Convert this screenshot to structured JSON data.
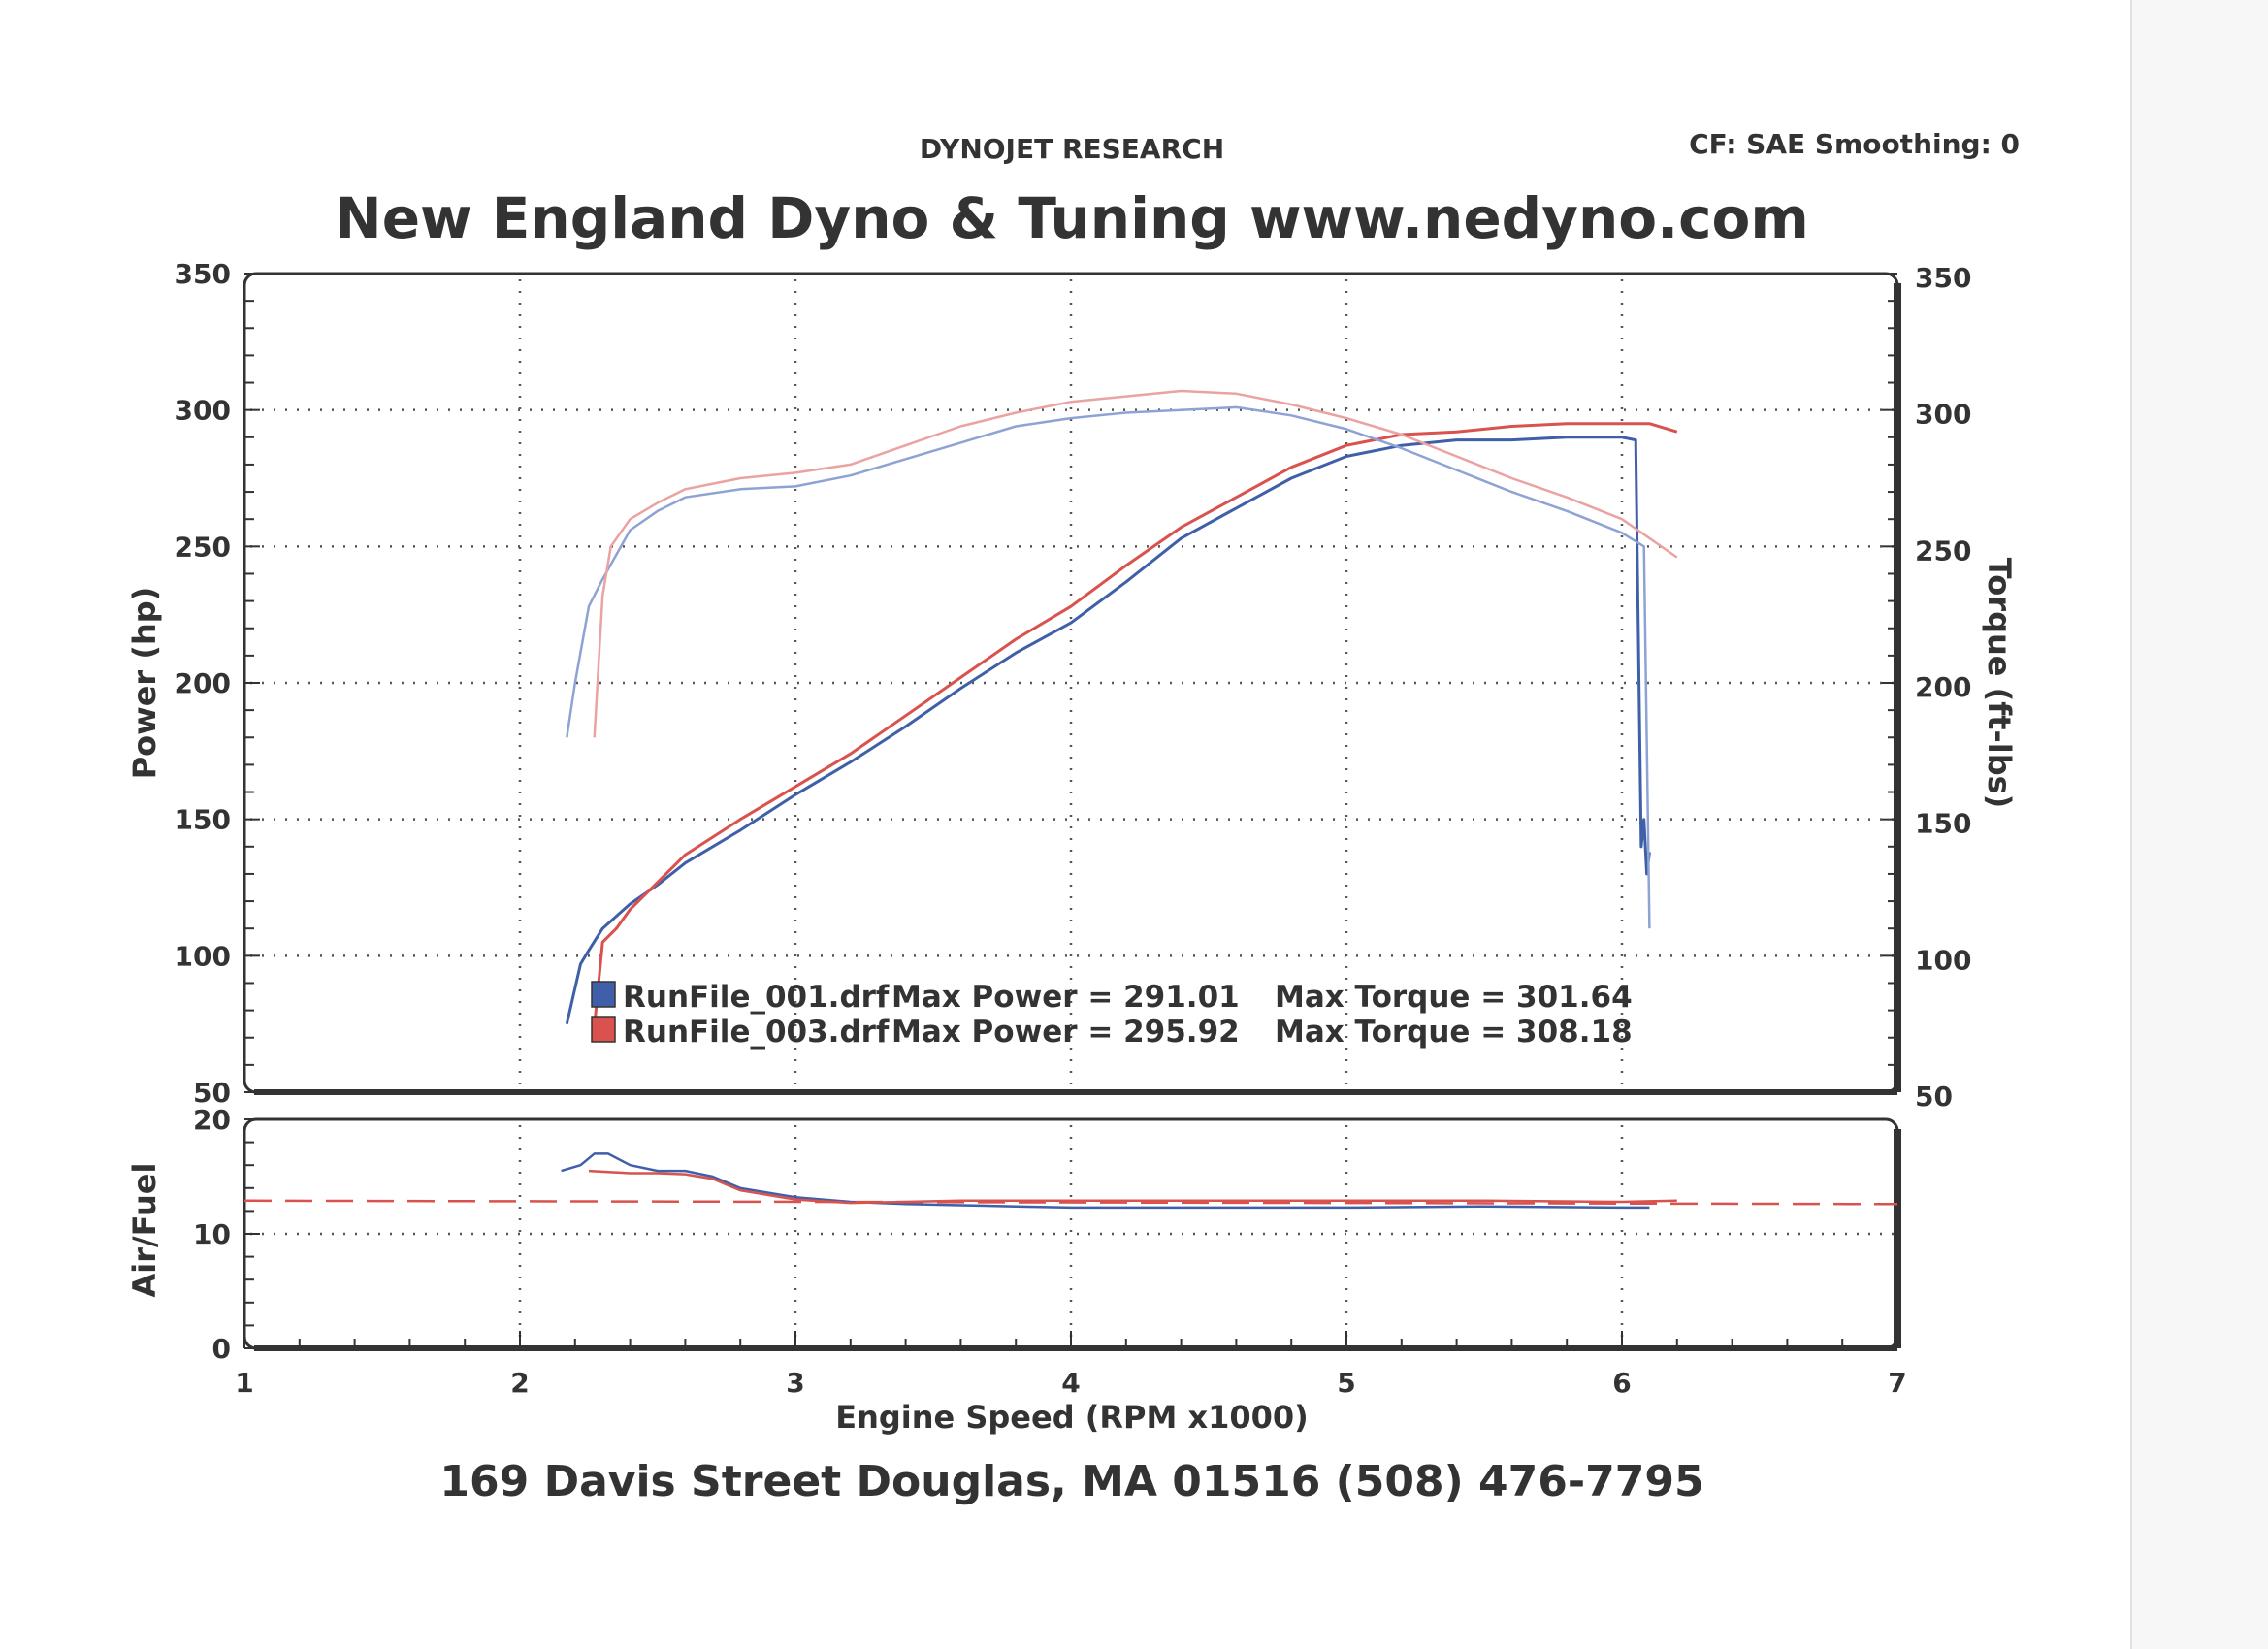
{
  "header": {
    "company": "DYNOJET RESEARCH",
    "settings": "CF: SAE  Smoothing: 0",
    "title": "New England Dyno & Tuning  www.nedyno.com"
  },
  "footer": {
    "address": "169 Davis Street  Douglas, MA 01516  (508) 476-7795"
  },
  "colors": {
    "run1": "#3f5fa8",
    "run2": "#d9524e",
    "run1_light": "#8ea3d4",
    "run2_light": "#eaa2a2",
    "grid": "#555555"
  },
  "chart_data": [
    {
      "type": "line",
      "title": "New England Dyno & Tuning  www.nedyno.com",
      "xlabel": "Engine Speed (RPM x1000)",
      "ylabel": "Power (hp)",
      "y2label": "Torque (ft-lbs)",
      "xlim": [
        1,
        7
      ],
      "ylim": [
        50,
        350
      ],
      "y2lim": [
        50,
        350
      ],
      "xticks": [
        "1",
        "2",
        "3",
        "4",
        "5",
        "6",
        "7"
      ],
      "yticks": [
        "50",
        "100",
        "150",
        "200",
        "250",
        "300",
        "350"
      ],
      "y2ticks": [
        "50",
        "100",
        "150",
        "200",
        "250",
        "300",
        "350"
      ],
      "grid": true,
      "legend": [
        {
          "file": "RunFile_001.drf",
          "max_power_label": "Max Power = 291.01",
          "max_torque_label": "Max Torque = 301.64",
          "color": "#3f5fa8"
        },
        {
          "file": "RunFile_003.drf",
          "max_power_label": "Max Power = 295.92",
          "max_torque_label": "Max Torque = 308.18",
          "color": "#d9524e"
        }
      ],
      "series": [
        {
          "run": "RunFile_001.drf",
          "quantity": "Power",
          "axis": "left",
          "color": "#3f5fa8",
          "x": [
            2.17,
            2.22,
            2.25,
            2.3,
            2.4,
            2.5,
            2.6,
            2.8,
            3.0,
            3.2,
            3.4,
            3.6,
            3.8,
            4.0,
            4.2,
            4.4,
            4.6,
            4.8,
            5.0,
            5.2,
            5.4,
            5.6,
            5.8,
            6.0,
            6.05,
            6.07,
            6.08,
            6.09,
            6.1
          ],
          "y": [
            75,
            97,
            102,
            110,
            119,
            126,
            134,
            146,
            159,
            171,
            184,
            198,
            211,
            222,
            237,
            253,
            264,
            275,
            283,
            287,
            289,
            289,
            290,
            290,
            289,
            140,
            150,
            130,
            138
          ]
        },
        {
          "run": "RunFile_003.drf",
          "quantity": "Power",
          "axis": "left",
          "color": "#d9524e",
          "x": [
            2.27,
            2.3,
            2.35,
            2.4,
            2.5,
            2.6,
            2.8,
            3.0,
            3.2,
            3.4,
            3.6,
            3.8,
            4.0,
            4.2,
            4.4,
            4.6,
            4.8,
            5.0,
            5.2,
            5.4,
            5.6,
            5.8,
            6.0,
            6.1,
            6.2
          ],
          "y": [
            74,
            105,
            110,
            117,
            127,
            137,
            150,
            162,
            174,
            188,
            202,
            216,
            228,
            243,
            257,
            268,
            279,
            287,
            291,
            292,
            294,
            295,
            295,
            295,
            292
          ]
        },
        {
          "run": "RunFile_001.drf",
          "quantity": "Torque",
          "axis": "right",
          "color": "#8ea3d4",
          "x": [
            2.17,
            2.2,
            2.25,
            2.3,
            2.4,
            2.5,
            2.6,
            2.8,
            3.0,
            3.2,
            3.4,
            3.6,
            3.8,
            4.0,
            4.2,
            4.4,
            4.6,
            4.8,
            5.0,
            5.2,
            5.4,
            5.6,
            5.8,
            6.0,
            6.08,
            6.1
          ],
          "y": [
            180,
            200,
            228,
            238,
            256,
            263,
            268,
            271,
            272,
            276,
            282,
            288,
            294,
            297,
            299,
            300,
            301,
            298,
            293,
            286,
            278,
            270,
            263,
            255,
            250,
            110
          ]
        },
        {
          "run": "RunFile_003.drf",
          "quantity": "Torque",
          "axis": "right",
          "color": "#eaa2a2",
          "x": [
            2.27,
            2.3,
            2.33,
            2.4,
            2.5,
            2.6,
            2.8,
            3.0,
            3.2,
            3.4,
            3.6,
            3.8,
            4.0,
            4.2,
            4.4,
            4.6,
            4.8,
            5.0,
            5.2,
            5.4,
            5.6,
            5.8,
            6.0,
            6.2
          ],
          "y": [
            180,
            232,
            250,
            260,
            266,
            271,
            275,
            277,
            280,
            287,
            294,
            299,
            303,
            305,
            307,
            306,
            302,
            297,
            291,
            283,
            275,
            268,
            260,
            246
          ]
        }
      ]
    },
    {
      "type": "line",
      "ylabel": "Air/Fuel",
      "xlabel": "Engine Speed (RPM x1000)",
      "xlim": [
        1,
        7
      ],
      "ylim": [
        0,
        20
      ],
      "yticks": [
        "0",
        "10",
        "20"
      ],
      "grid": true,
      "series": [
        {
          "run": "RunFile_001.drf",
          "color": "#3f5fa8",
          "x": [
            2.15,
            2.22,
            2.27,
            2.32,
            2.4,
            2.5,
            2.6,
            2.7,
            2.8,
            3.0,
            3.2,
            3.4,
            3.6,
            3.8,
            4.0,
            4.5,
            5.0,
            5.5,
            6.0,
            6.1
          ],
          "y": [
            15.5,
            16.0,
            17.0,
            17.0,
            16.0,
            15.5,
            15.5,
            15.0,
            14.0,
            13.2,
            12.8,
            12.6,
            12.5,
            12.4,
            12.3,
            12.3,
            12.3,
            12.4,
            12.3,
            12.3
          ]
        },
        {
          "run": "RunFile_003.drf",
          "color": "#d9524e",
          "x": [
            2.25,
            2.4,
            2.5,
            2.6,
            2.7,
            2.8,
            3.0,
            3.2,
            3.4,
            3.6,
            3.8,
            4.0,
            4.5,
            5.0,
            5.5,
            6.0,
            6.2
          ],
          "y": [
            15.5,
            15.3,
            15.3,
            15.2,
            14.8,
            13.8,
            13.0,
            12.7,
            12.8,
            12.9,
            12.9,
            12.9,
            12.9,
            12.9,
            12.9,
            12.8,
            12.9
          ]
        },
        {
          "run": "reference",
          "color": "#d9524e",
          "dashed": true,
          "x": [
            1.0,
            7.0
          ],
          "y": [
            12.9,
            12.6
          ]
        }
      ]
    }
  ]
}
